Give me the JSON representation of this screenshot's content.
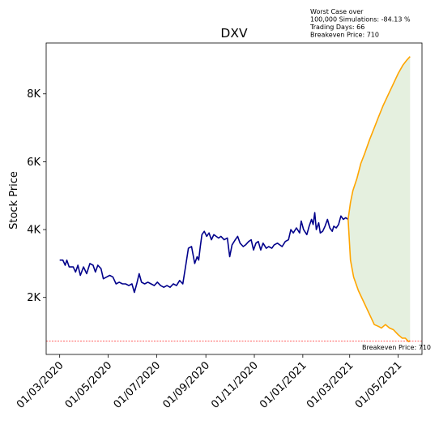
{
  "chart_data": {
    "type": "line",
    "title": "DXV",
    "xlabel": "",
    "ylabel": "Stock Price",
    "grid": false,
    "x_ticks": [
      "01/03/2020",
      "01/05/2020",
      "01/07/2020",
      "01/09/2020",
      "01/11/2020",
      "01/01/2021",
      "01/03/2021",
      "01/05/2021"
    ],
    "y_ticks": [
      {
        "value": 2000,
        "label": "2K"
      },
      {
        "value": 4000,
        "label": "4K"
      },
      {
        "value": 6000,
        "label": "6K"
      },
      {
        "value": 8000,
        "label": "8K"
      }
    ],
    "xlim": [
      "2020-02-13",
      "2021-05-31"
    ],
    "ylim": [
      320,
      9500
    ],
    "annotation_lines": [
      "Worst Case over",
      "100,000 Simulations: -84.13 %",
      "Trading Days: 66",
      "Breakeven Price: 710"
    ],
    "breakeven": {
      "value": 710,
      "label": "Breakeven Price: 710",
      "color": "#ff0000"
    },
    "colors": {
      "history": "#00008b",
      "simulation": "#ffa500",
      "band": "#e5f0df"
    },
    "series": [
      {
        "role": "history",
        "points": [
          [
            "2020-03-01",
            3100
          ],
          [
            "2020-03-05",
            3100
          ],
          [
            "2020-03-08",
            2950
          ],
          [
            "2020-03-10",
            3100
          ],
          [
            "2020-03-13",
            2900
          ],
          [
            "2020-03-18",
            2900
          ],
          [
            "2020-03-21",
            2750
          ],
          [
            "2020-03-24",
            2950
          ],
          [
            "2020-03-27",
            2650
          ],
          [
            "2020-03-31",
            2900
          ],
          [
            "2020-04-04",
            2700
          ],
          [
            "2020-04-08",
            3000
          ],
          [
            "2020-04-12",
            2950
          ],
          [
            "2020-04-15",
            2750
          ],
          [
            "2020-04-18",
            2950
          ],
          [
            "2020-04-22",
            2850
          ],
          [
            "2020-04-25",
            2550
          ],
          [
            "2020-04-29",
            2600
          ],
          [
            "2020-05-03",
            2650
          ],
          [
            "2020-05-07",
            2600
          ],
          [
            "2020-05-11",
            2400
          ],
          [
            "2020-05-15",
            2450
          ],
          [
            "2020-05-19",
            2400
          ],
          [
            "2020-05-23",
            2400
          ],
          [
            "2020-05-27",
            2350
          ],
          [
            "2020-05-31",
            2400
          ],
          [
            "2020-06-03",
            2150
          ],
          [
            "2020-06-06",
            2400
          ],
          [
            "2020-06-09",
            2700
          ],
          [
            "2020-06-12",
            2450
          ],
          [
            "2020-06-16",
            2400
          ],
          [
            "2020-06-20",
            2450
          ],
          [
            "2020-06-24",
            2400
          ],
          [
            "2020-06-28",
            2350
          ],
          [
            "2020-07-02",
            2450
          ],
          [
            "2020-07-06",
            2350
          ],
          [
            "2020-07-10",
            2300
          ],
          [
            "2020-07-14",
            2350
          ],
          [
            "2020-07-18",
            2300
          ],
          [
            "2020-07-22",
            2400
          ],
          [
            "2020-07-26",
            2350
          ],
          [
            "2020-07-30",
            2500
          ],
          [
            "2020-08-03",
            2400
          ],
          [
            "2020-08-07",
            3000
          ],
          [
            "2020-08-10",
            3450
          ],
          [
            "2020-08-14",
            3500
          ],
          [
            "2020-08-18",
            3000
          ],
          [
            "2020-08-21",
            3200
          ],
          [
            "2020-08-23",
            3100
          ],
          [
            "2020-08-25",
            3500
          ],
          [
            "2020-08-27",
            3850
          ],
          [
            "2020-08-30",
            3950
          ],
          [
            "2020-09-02",
            3800
          ],
          [
            "2020-09-05",
            3900
          ],
          [
            "2020-09-08",
            3700
          ],
          [
            "2020-09-11",
            3850
          ],
          [
            "2020-09-14",
            3800
          ],
          [
            "2020-09-17",
            3750
          ],
          [
            "2020-09-20",
            3800
          ],
          [
            "2020-09-24",
            3700
          ],
          [
            "2020-09-28",
            3750
          ],
          [
            "2020-10-01",
            3200
          ],
          [
            "2020-10-04",
            3550
          ],
          [
            "2020-10-08",
            3700
          ],
          [
            "2020-10-11",
            3800
          ],
          [
            "2020-10-14",
            3600
          ],
          [
            "2020-10-18",
            3500
          ],
          [
            "2020-10-21",
            3550
          ],
          [
            "2020-10-25",
            3650
          ],
          [
            "2020-10-28",
            3700
          ],
          [
            "2020-10-31",
            3400
          ],
          [
            "2020-11-03",
            3600
          ],
          [
            "2020-11-06",
            3650
          ],
          [
            "2020-11-09",
            3400
          ],
          [
            "2020-11-12",
            3600
          ],
          [
            "2020-11-16",
            3450
          ],
          [
            "2020-11-19",
            3500
          ],
          [
            "2020-11-23",
            3450
          ],
          [
            "2020-11-26",
            3550
          ],
          [
            "2020-11-30",
            3600
          ],
          [
            "2020-12-03",
            3550
          ],
          [
            "2020-12-06",
            3500
          ],
          [
            "2020-12-10",
            3650
          ],
          [
            "2020-12-14",
            3700
          ],
          [
            "2020-12-17",
            4000
          ],
          [
            "2020-12-20",
            3900
          ],
          [
            "2020-12-24",
            4050
          ],
          [
            "2020-12-28",
            3900
          ],
          [
            "2020-12-30",
            4250
          ],
          [
            "2021-01-02",
            4000
          ],
          [
            "2021-01-06",
            3850
          ],
          [
            "2021-01-09",
            4100
          ],
          [
            "2021-01-12",
            4300
          ],
          [
            "2021-01-14",
            4150
          ],
          [
            "2021-01-16",
            4500
          ],
          [
            "2021-01-18",
            4000
          ],
          [
            "2021-01-21",
            4200
          ],
          [
            "2021-01-23",
            3900
          ],
          [
            "2021-01-26",
            3950
          ],
          [
            "2021-01-29",
            4100
          ],
          [
            "2021-02-01",
            4300
          ],
          [
            "2021-02-04",
            4050
          ],
          [
            "2021-02-07",
            3950
          ],
          [
            "2021-02-09",
            4100
          ],
          [
            "2021-02-12",
            4050
          ],
          [
            "2021-02-15",
            4150
          ],
          [
            "2021-02-18",
            4400
          ],
          [
            "2021-02-21",
            4300
          ],
          [
            "2021-02-24",
            4350
          ],
          [
            "2021-02-27",
            4300
          ]
        ]
      },
      {
        "role": "simulation-upper",
        "points": [
          [
            "2021-02-27",
            4300
          ],
          [
            "2021-03-02",
            4800
          ],
          [
            "2021-03-05",
            5150
          ],
          [
            "2021-03-10",
            5500
          ],
          [
            "2021-03-15",
            5950
          ],
          [
            "2021-03-20",
            6250
          ],
          [
            "2021-03-26",
            6650
          ],
          [
            "2021-04-01",
            7000
          ],
          [
            "2021-04-06",
            7300
          ],
          [
            "2021-04-12",
            7650
          ],
          [
            "2021-04-19",
            8000
          ],
          [
            "2021-04-25",
            8300
          ],
          [
            "2021-05-01",
            8600
          ],
          [
            "2021-05-07",
            8850
          ],
          [
            "2021-05-12",
            9000
          ],
          [
            "2021-05-16",
            9100
          ]
        ]
      },
      {
        "role": "simulation-lower",
        "points": [
          [
            "2021-02-27",
            4300
          ],
          [
            "2021-03-02",
            3100
          ],
          [
            "2021-03-06",
            2600
          ],
          [
            "2021-03-12",
            2200
          ],
          [
            "2021-03-18",
            1900
          ],
          [
            "2021-03-24",
            1600
          ],
          [
            "2021-03-28",
            1400
          ],
          [
            "2021-04-01",
            1200
          ],
          [
            "2021-04-06",
            1150
          ],
          [
            "2021-04-10",
            1100
          ],
          [
            "2021-04-15",
            1200
          ],
          [
            "2021-04-20",
            1100
          ],
          [
            "2021-04-25",
            1050
          ],
          [
            "2021-05-01",
            900
          ],
          [
            "2021-05-06",
            800
          ],
          [
            "2021-05-10",
            800
          ],
          [
            "2021-05-14",
            700
          ],
          [
            "2021-05-16",
            720
          ]
        ]
      }
    ]
  }
}
